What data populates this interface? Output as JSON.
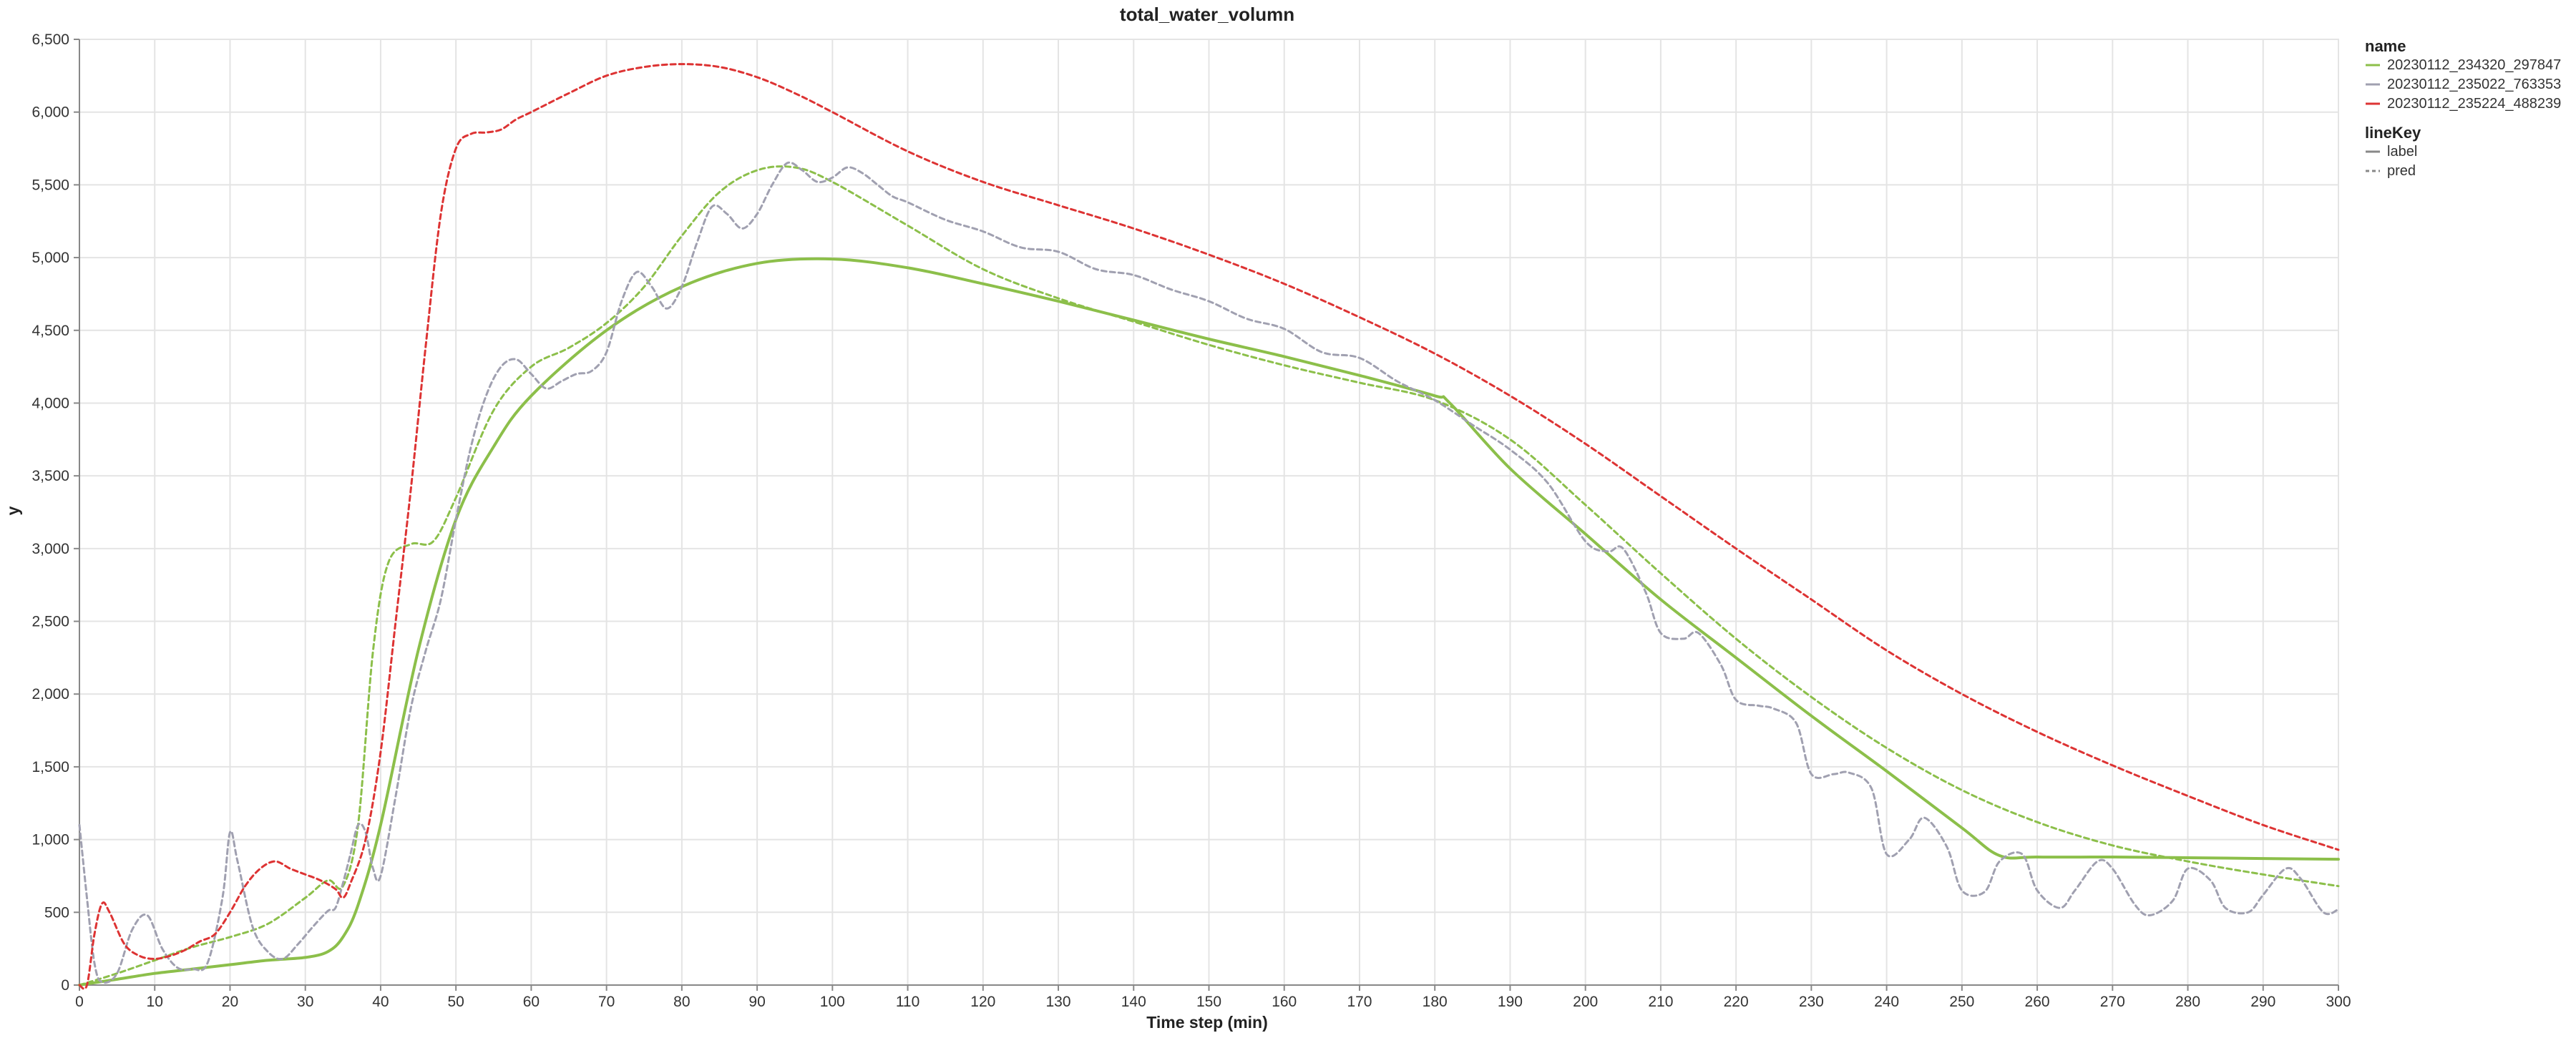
{
  "chart_data": {
    "type": "line",
    "title": "total_water_volumn",
    "xlabel": "Time step (min)",
    "ylabel": "y",
    "xlim": [
      0,
      300
    ],
    "ylim": [
      0,
      6500
    ],
    "xticks": [
      0,
      10,
      20,
      30,
      40,
      50,
      60,
      70,
      80,
      90,
      100,
      110,
      120,
      130,
      140,
      150,
      160,
      170,
      180,
      190,
      200,
      210,
      220,
      230,
      240,
      250,
      260,
      270,
      280,
      290,
      300
    ],
    "xtick_labels": [
      "0",
      "10",
      "20",
      "30",
      "40",
      "50",
      "60",
      "70",
      "80",
      "90",
      "100",
      "110",
      "120",
      "130",
      "140",
      "150",
      "160",
      "170",
      "180",
      "190",
      "200",
      "210",
      "220",
      "230",
      "240",
      "250",
      "260",
      "270",
      "280",
      "290",
      "300"
    ],
    "yticks": [
      0,
      500,
      1000,
      1500,
      2000,
      2500,
      3000,
      3500,
      4000,
      4500,
      5000,
      5500,
      6000,
      6500
    ],
    "ytick_labels": [
      "0",
      "500",
      "1,000",
      "1,500",
      "2,000",
      "2,500",
      "3,000",
      "3,500",
      "4,000",
      "4,500",
      "5,000",
      "5,500",
      "6,000",
      "6,500"
    ],
    "grid": true,
    "legend_placement": "top-right outside",
    "legend": {
      "name_title": "name",
      "name_entries": [
        {
          "label": "20230112_234320_297847",
          "color": "#8cbf4a"
        },
        {
          "label": "20230112_235022_763353",
          "color": "#a0a0b0"
        },
        {
          "label": "20230112_235224_488239",
          "color": "#dd3333"
        }
      ],
      "linekey_title": "lineKey",
      "linekey_entries": [
        {
          "label": "label",
          "dash": "solid"
        },
        {
          "label": "pred",
          "dash": "dashed"
        }
      ]
    },
    "series": [
      {
        "name": "20230112_234320_297847",
        "lineKey": "label",
        "color": "#8cbf4a",
        "dash": "solid",
        "width": 4,
        "x": [
          0,
          5,
          10,
          15,
          20,
          25,
          30,
          33,
          35,
          37,
          40,
          45,
          50,
          55,
          60,
          70,
          80,
          90,
          100,
          110,
          120,
          130,
          140,
          150,
          160,
          170,
          180,
          182,
          190,
          200,
          210,
          220,
          230,
          240,
          250,
          255,
          260,
          270,
          280,
          290,
          300
        ],
        "y": [
          0,
          40,
          80,
          110,
          140,
          170,
          190,
          230,
          330,
          550,
          1100,
          2300,
          3200,
          3700,
          4050,
          4500,
          4800,
          4960,
          4990,
          4930,
          4820,
          4700,
          4570,
          4440,
          4320,
          4190,
          4050,
          4000,
          3550,
          3100,
          2650,
          2250,
          1850,
          1470,
          1080,
          890,
          880,
          880,
          875,
          870,
          865
        ]
      },
      {
        "name": "20230112_234320_297847",
        "lineKey": "pred",
        "color": "#8cbf4a",
        "dash": "dashed",
        "width": 3,
        "x": [
          0,
          5,
          10,
          15,
          20,
          25,
          30,
          33,
          35,
          37,
          39,
          41,
          44,
          47,
          50,
          55,
          60,
          65,
          70,
          75,
          80,
          85,
          90,
          95,
          100,
          110,
          120,
          130,
          140,
          150,
          160,
          170,
          180,
          190,
          200,
          210,
          220,
          230,
          240,
          250,
          260,
          270,
          280,
          290,
          300
        ],
        "y": [
          0,
          80,
          170,
          260,
          330,
          420,
          600,
          720,
          680,
          1100,
          2300,
          2900,
          3030,
          3050,
          3350,
          3950,
          4250,
          4380,
          4550,
          4800,
          5150,
          5450,
          5600,
          5620,
          5520,
          5220,
          4920,
          4720,
          4560,
          4400,
          4260,
          4140,
          4020,
          3750,
          3300,
          2830,
          2380,
          1980,
          1630,
          1340,
          1120,
          960,
          850,
          760,
          680
        ]
      },
      {
        "name": "20230112_235022_763353",
        "lineKey": "pred",
        "color": "#a0a0b0",
        "dash": "dashed",
        "width": 3,
        "x": [
          0,
          1,
          2,
          3,
          5,
          7,
          9,
          11,
          13,
          15,
          17,
          19,
          20,
          21,
          23,
          25,
          27,
          29,
          31,
          33,
          34,
          35,
          36,
          37,
          38,
          39,
          40,
          42,
          44,
          46,
          48,
          50,
          52,
          54,
          56,
          58,
          60,
          62,
          64,
          66,
          68,
          70,
          72,
          74,
          76,
          78,
          80,
          82,
          84,
          86,
          88,
          90,
          92,
          94,
          96,
          98,
          100,
          102,
          104,
          106,
          108,
          110,
          115,
          120,
          125,
          130,
          135,
          140,
          145,
          150,
          155,
          160,
          165,
          170,
          175,
          180,
          185,
          190,
          195,
          200,
          203,
          205,
          208,
          210,
          213,
          215,
          218,
          220,
          223,
          225,
          228,
          230,
          233,
          235,
          238,
          240,
          243,
          245,
          248,
          250,
          253,
          255,
          258,
          260,
          263,
          265,
          268,
          270,
          273,
          275,
          278,
          280,
          283,
          285,
          288,
          290,
          293,
          295,
          298,
          300
        ],
        "y": [
          1100,
          600,
          150,
          20,
          80,
          380,
          480,
          250,
          120,
          110,
          150,
          600,
          1050,
          850,
          400,
          230,
          180,
          280,
          400,
          510,
          530,
          700,
          900,
          1100,
          1050,
          800,
          750,
          1300,
          1900,
          2300,
          2650,
          3200,
          3700,
          4050,
          4250,
          4300,
          4200,
          4100,
          4150,
          4200,
          4220,
          4350,
          4700,
          4900,
          4800,
          4650,
          4800,
          5100,
          5350,
          5300,
          5200,
          5300,
          5500,
          5650,
          5600,
          5520,
          5550,
          5620,
          5580,
          5500,
          5420,
          5380,
          5260,
          5180,
          5070,
          5040,
          4920,
          4880,
          4780,
          4700,
          4580,
          4510,
          4350,
          4310,
          4150,
          4020,
          3850,
          3680,
          3450,
          3050,
          2980,
          3000,
          2700,
          2420,
          2380,
          2420,
          2200,
          1960,
          1920,
          1900,
          1800,
          1450,
          1450,
          1460,
          1350,
          900,
          1000,
          1150,
          950,
          650,
          640,
          850,
          900,
          650,
          530,
          650,
          850,
          800,
          550,
          480,
          580,
          800,
          720,
          530,
          500,
          620,
          800,
          730,
          500,
          520
        ]
      },
      {
        "name": "20230112_235224_488239",
        "lineKey": "pred",
        "color": "#dd3333",
        "dash": "dashed",
        "width": 3,
        "x": [
          0,
          1,
          2,
          3,
          4,
          6,
          8,
          10,
          12,
          14,
          16,
          18,
          20,
          22,
          24,
          26,
          28,
          30,
          32,
          34,
          35,
          36,
          38,
          40,
          42,
          44,
          46,
          48,
          50,
          52,
          54,
          56,
          58,
          60,
          65,
          70,
          75,
          80,
          85,
          90,
          95,
          100,
          110,
          120,
          130,
          140,
          150,
          160,
          170,
          180,
          190,
          200,
          210,
          220,
          230,
          240,
          250,
          260,
          270,
          280,
          290,
          300
        ],
        "y": [
          0,
          0,
          350,
          560,
          500,
          280,
          200,
          180,
          200,
          240,
          300,
          350,
          500,
          680,
          800,
          850,
          800,
          760,
          720,
          660,
          600,
          700,
          1000,
          1600,
          2500,
          3400,
          4400,
          5300,
          5750,
          5850,
          5860,
          5880,
          5950,
          6000,
          6130,
          6250,
          6310,
          6330,
          6310,
          6240,
          6130,
          6000,
          5730,
          5520,
          5360,
          5200,
          5020,
          4820,
          4590,
          4340,
          4050,
          3720,
          3360,
          3000,
          2650,
          2300,
          2000,
          1740,
          1510,
          1300,
          1100,
          930
        ]
      }
    ]
  }
}
